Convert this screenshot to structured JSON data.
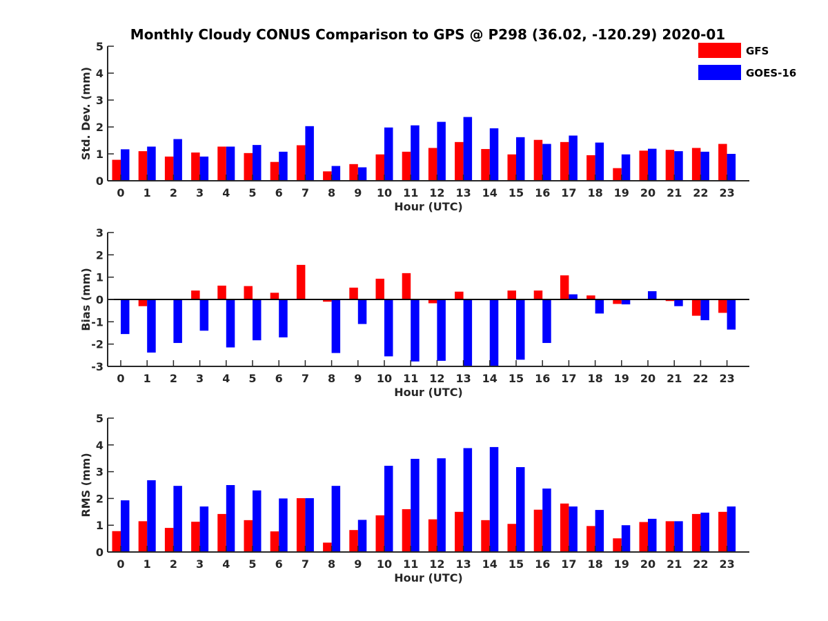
{
  "figure": {
    "title": "Monthly Cloudy CONUS Comparison to GPS @ P298 (36.02, -120.29) 2020-01"
  },
  "legend": {
    "placement": "top-right",
    "entries": [
      {
        "name": "GFS",
        "color": "#ff0000"
      },
      {
        "name": "GOES-16",
        "color": "#0000ff"
      }
    ]
  },
  "chart_data": [
    {
      "type": "bar",
      "ylabel": "Std. Dev. (mm)",
      "xlabel": "Hour (UTC)",
      "ylim": [
        0,
        5
      ],
      "yticks": [
        0,
        1,
        2,
        3,
        4,
        5
      ],
      "categories": [
        "0",
        "1",
        "2",
        "3",
        "4",
        "5",
        "6",
        "7",
        "8",
        "9",
        "10",
        "11",
        "12",
        "13",
        "14",
        "15",
        "16",
        "17",
        "18",
        "19",
        "20",
        "21",
        "22",
        "23"
      ],
      "grid": false,
      "series": [
        {
          "name": "GFS",
          "color": "#ff0000",
          "values": [
            0.78,
            1.1,
            0.9,
            1.05,
            1.27,
            1.03,
            0.7,
            1.32,
            0.35,
            0.62,
            0.98,
            1.08,
            1.22,
            1.44,
            1.18,
            0.98,
            1.52,
            1.44,
            0.95,
            0.47,
            1.12,
            1.15,
            1.22,
            1.37
          ]
        },
        {
          "name": "GOES-16",
          "color": "#0000ff",
          "values": [
            1.17,
            1.27,
            1.55,
            0.9,
            1.27,
            1.33,
            1.08,
            2.03,
            0.55,
            0.5,
            1.98,
            2.06,
            2.19,
            2.37,
            1.95,
            1.62,
            1.37,
            1.68,
            1.42,
            0.98,
            1.19,
            1.1,
            1.08,
            1.0
          ]
        }
      ]
    },
    {
      "type": "bar",
      "ylabel": "Bias (mm)",
      "xlabel": "Hour (UTC)",
      "ylim": [
        -3,
        3
      ],
      "yticks": [
        -3,
        -2,
        -1,
        0,
        1,
        2,
        3
      ],
      "categories": [
        "0",
        "1",
        "2",
        "3",
        "4",
        "5",
        "6",
        "7",
        "8",
        "9",
        "10",
        "11",
        "12",
        "13",
        "14",
        "15",
        "16",
        "17",
        "18",
        "19",
        "20",
        "21",
        "22",
        "23"
      ],
      "grid": false,
      "series": [
        {
          "name": "GFS",
          "color": "#ff0000",
          "values": [
            0.0,
            -0.3,
            0.0,
            0.4,
            0.62,
            0.6,
            0.3,
            1.55,
            -0.1,
            0.53,
            0.93,
            1.18,
            -0.17,
            0.35,
            0.03,
            0.4,
            0.4,
            1.08,
            0.18,
            -0.2,
            0.0,
            -0.07,
            -0.73,
            -0.6
          ]
        },
        {
          "name": "GOES-16",
          "color": "#0000ff",
          "values": [
            -1.55,
            -2.38,
            -1.95,
            -1.4,
            -2.15,
            -1.83,
            -1.7,
            0.0,
            -2.4,
            -1.1,
            -2.55,
            -2.78,
            -2.75,
            -3.0,
            -3.0,
            -2.7,
            -1.95,
            0.23,
            -0.63,
            -0.22,
            0.37,
            -0.3,
            -0.93,
            -1.35
          ]
        }
      ]
    },
    {
      "type": "bar",
      "ylabel": "RMS (mm)",
      "xlabel": "Hour (UTC)",
      "ylim": [
        0,
        5
      ],
      "yticks": [
        0,
        1,
        2,
        3,
        4,
        5
      ],
      "categories": [
        "0",
        "1",
        "2",
        "3",
        "4",
        "5",
        "6",
        "7",
        "8",
        "9",
        "10",
        "11",
        "12",
        "13",
        "14",
        "15",
        "16",
        "17",
        "18",
        "19",
        "20",
        "21",
        "22",
        "23"
      ],
      "grid": false,
      "series": [
        {
          "name": "GFS",
          "color": "#ff0000",
          "values": [
            0.78,
            1.15,
            0.9,
            1.13,
            1.42,
            1.19,
            0.77,
            2.01,
            0.35,
            0.82,
            1.37,
            1.6,
            1.22,
            1.5,
            1.19,
            1.05,
            1.58,
            1.81,
            0.97,
            0.51,
            1.12,
            1.15,
            1.42,
            1.5
          ]
        },
        {
          "name": "GOES-16",
          "color": "#0000ff",
          "values": [
            1.93,
            2.68,
            2.47,
            1.7,
            2.5,
            2.3,
            2.0,
            2.01,
            2.47,
            1.2,
            3.22,
            3.48,
            3.5,
            3.88,
            3.92,
            3.17,
            2.37,
            1.7,
            1.57,
            1.0,
            1.24,
            1.15,
            1.47,
            1.7
          ]
        }
      ]
    }
  ]
}
